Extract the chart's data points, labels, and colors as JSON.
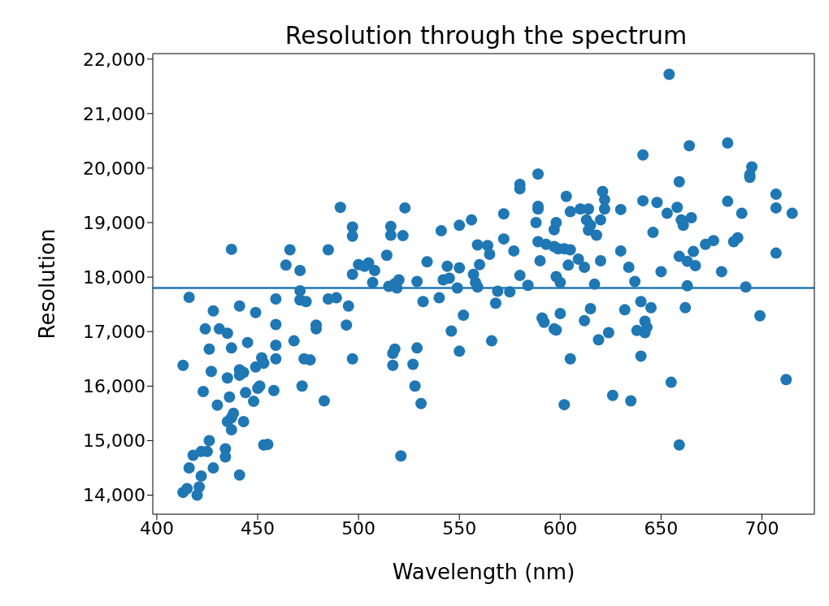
{
  "chart_data": {
    "type": "scatter",
    "title": "Resolution through the spectrum",
    "xlabel": "Wavelength (nm)",
    "ylabel": "Resolution",
    "x": [
      413,
      415,
      416,
      418,
      420,
      421,
      422,
      422,
      425,
      426,
      428,
      434,
      434,
      441,
      413,
      416,
      423,
      424,
      426,
      427,
      428,
      430,
      431,
      435,
      435,
      436,
      435,
      437,
      437,
      437,
      438,
      441,
      441,
      441,
      443,
      443,
      444,
      445,
      448,
      449,
      450,
      451,
      452,
      453,
      453,
      455,
      449,
      437,
      458,
      459,
      459,
      459,
      459,
      464,
      466,
      468,
      471,
      471,
      471,
      472,
      473,
      474,
      476,
      479,
      479,
      483,
      485,
      485,
      489,
      491,
      494,
      495,
      497,
      497,
      497,
      497,
      500,
      503,
      505,
      507,
      508,
      514,
      515,
      516,
      516,
      517,
      517,
      518,
      518,
      519,
      520,
      521,
      522,
      523,
      527,
      528,
      529,
      529,
      531,
      532,
      534,
      540,
      541,
      542,
      544,
      545,
      546,
      549,
      550,
      550,
      550,
      552,
      556,
      557,
      558,
      559,
      559,
      560,
      564,
      565,
      566,
      568,
      569,
      572,
      572,
      575,
      577,
      580,
      580,
      580,
      584,
      588,
      589,
      589,
      589,
      589,
      590,
      591,
      592,
      593,
      597,
      597,
      597,
      598,
      598,
      598,
      599,
      600,
      600,
      602,
      602,
      603,
      604,
      605,
      605,
      605,
      609,
      610,
      612,
      612,
      613,
      614,
      614,
      615,
      615,
      617,
      618,
      619,
      620,
      620,
      621,
      622,
      622,
      624,
      626,
      630,
      630,
      632,
      634,
      635,
      637,
      638,
      640,
      640,
      641,
      641,
      642,
      642,
      643,
      645,
      646,
      648,
      650,
      653,
      654,
      655,
      658,
      659,
      659,
      659,
      660,
      661,
      662,
      663,
      663,
      664,
      665,
      666,
      667,
      672,
      676,
      680,
      683,
      683,
      686,
      688,
      690,
      692,
      694,
      694,
      695,
      699,
      707,
      707,
      707,
      712,
      715
    ],
    "series": [
      {
        "color": "#1f77b4",
        "values": [
          14050,
          14120,
          14500,
          14730,
          14000,
          14150,
          14800,
          14350,
          14800,
          15000,
          14500,
          14850,
          14700,
          14370,
          16380,
          17630,
          15900,
          17050,
          16680,
          16270,
          17380,
          15650,
          17050,
          16970,
          16150,
          15800,
          15350,
          15200,
          15420,
          16700,
          15500,
          16200,
          16300,
          17470,
          15350,
          16250,
          15880,
          16800,
          15720,
          16350,
          15960,
          16000,
          16520,
          16420,
          14920,
          14930,
          17350,
          18510,
          15920,
          17600,
          16750,
          17130,
          16500,
          18220,
          18500,
          16830,
          17750,
          17580,
          18120,
          16000,
          16500,
          17550,
          16480,
          17120,
          17050,
          15730,
          17600,
          18500,
          17620,
          19280,
          17120,
          17470,
          16500,
          18920,
          18750,
          18050,
          18230,
          18200,
          18260,
          17900,
          18120,
          18400,
          17830,
          18930,
          18770,
          16380,
          16600,
          16680,
          17880,
          17800,
          17950,
          14720,
          18760,
          19270,
          16400,
          16000,
          16700,
          17920,
          15680,
          17550,
          18280,
          17620,
          18850,
          17950,
          18200,
          17980,
          17010,
          17800,
          18950,
          18170,
          16640,
          17300,
          19050,
          18050,
          17900,
          17820,
          18590,
          18230,
          18580,
          18420,
          16830,
          17520,
          17740,
          19160,
          18700,
          17730,
          18480,
          19700,
          19620,
          18030,
          17850,
          19000,
          19890,
          19300,
          19250,
          18650,
          18300,
          17250,
          17170,
          18600,
          18560,
          18870,
          17050,
          17030,
          19000,
          18010,
          18520,
          17900,
          17330,
          18520,
          15660,
          19480,
          18220,
          16500,
          19200,
          18500,
          18330,
          19250,
          18180,
          17200,
          19050,
          18860,
          19250,
          17420,
          18950,
          17870,
          18770,
          16850,
          19050,
          18300,
          19570,
          19420,
          19250,
          16980,
          15830,
          19240,
          18480,
          17400,
          18180,
          15730,
          17920,
          17020,
          16550,
          17550,
          20240,
          19400,
          17190,
          16980,
          17080,
          17440,
          18820,
          19370,
          18100,
          19170,
          21720,
          16070,
          19280,
          19750,
          14920,
          18380,
          19050,
          18950,
          17440,
          17840,
          18290,
          20410,
          19090,
          18470,
          18210,
          18600,
          18670,
          18100,
          20460,
          19390,
          18650,
          18720,
          19170,
          17820,
          19830,
          19880,
          20020,
          17290,
          19270,
          19520,
          18440,
          16120,
          19170
        ]
      }
    ],
    "marker": "circle",
    "xlim": [
      398,
      726
    ],
    "xticks": [
      400,
      450,
      500,
      550,
      600,
      650,
      700
    ],
    "ylim": [
      13650,
      22100
    ],
    "yticks": [
      {
        "value": 14000,
        "label": "14,000"
      },
      {
        "value": 15000,
        "label": "15,000"
      },
      {
        "value": 16000,
        "label": "16,000"
      },
      {
        "value": 17000,
        "label": "17,000"
      },
      {
        "value": 18000,
        "label": "18,000"
      },
      {
        "value": 19000,
        "label": "19,000"
      },
      {
        "value": 20000,
        "label": "20,000"
      },
      {
        "value": 21000,
        "label": "21,000"
      },
      {
        "value": 22000,
        "label": "22,000"
      }
    ],
    "ref_lines": [
      {
        "axis": "y",
        "value": 17800,
        "color": "#1f77b4"
      }
    ],
    "grid": false,
    "legend": false
  }
}
